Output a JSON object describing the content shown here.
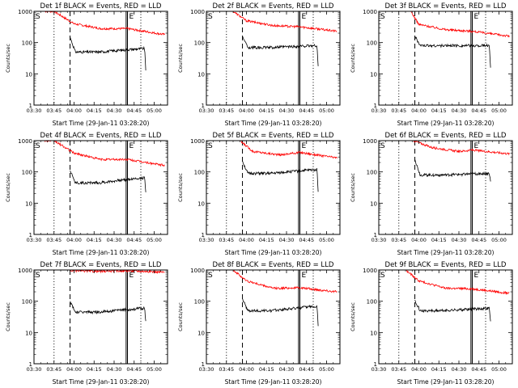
{
  "chart_data": {
    "type": "line",
    "y_scale": "log",
    "ylim": [
      1,
      1000
    ],
    "y_tick_labels": [
      "1",
      "10",
      "100",
      "1000"
    ],
    "x_tick_labels": [
      "03:30",
      "03:45",
      "04:00",
      "04:15",
      "04:30",
      "04:45",
      "05:00"
    ],
    "xlim": [
      "03:30",
      "05:10"
    ],
    "ylabel": "Counts/sec",
    "xlabel": "Start Time (29-Jan-11 03:28:20)",
    "colors": {
      "events": "#000000",
      "lld": "#ff0000",
      "axes": "#000000"
    },
    "series_names": [
      "BLACK = Events",
      "RED = LLD"
    ],
    "panels": [
      {
        "title": "Det 1f BLACK = Events, RED = LLD",
        "S_label": "S",
        "E_label": "E",
        "dotted": [
          "03:45",
          "04:50"
        ],
        "dashed": "03:57",
        "solid": [
          "04:39",
          "04:40"
        ],
        "events": {
          "start": "03:57",
          "end": "04:54",
          "peak": 150,
          "min": 50,
          "plateau_end": 65,
          "drop": 8
        },
        "lld": {
          "start": "03:38",
          "end": "05:08",
          "values_at": {
            "03:45": 1000,
            "04:00": 400,
            "04:20": 280,
            "04:40": 280,
            "05:08": 180
          }
        }
      },
      {
        "title": "Det 2f BLACK = Events, RED = LLD",
        "S_label": "S",
        "E_label": "E",
        "dotted": [
          "03:45",
          "04:50"
        ],
        "dashed": "03:57",
        "solid": [
          "04:39",
          "04:40"
        ],
        "events": {
          "start": "03:57",
          "end": "04:54",
          "peak": 160,
          "min": 70,
          "plateau_end": 80,
          "drop": 10
        },
        "lld": {
          "start": "03:50",
          "end": "05:08",
          "values_at": {
            "03:50": 1000,
            "04:00": 500,
            "04:20": 350,
            "04:40": 320,
            "05:08": 230
          }
        }
      },
      {
        "title": "Det 3f BLACK = Events, RED = LLD",
        "S_label": "S",
        "E_label": "E",
        "dotted": [
          "03:45",
          "04:50"
        ],
        "dashed": "03:57",
        "solid": [
          "04:39",
          "04:40"
        ],
        "events": {
          "start": "03:57",
          "end": "04:54",
          "peak": 160,
          "min": 80,
          "plateau_end": 80,
          "drop": 10
        },
        "lld": {
          "start": "03:54",
          "end": "05:08",
          "values_at": {
            "03:54": 1000,
            "04:00": 380,
            "04:20": 260,
            "04:40": 230,
            "05:08": 160
          }
        }
      },
      {
        "title": "Det 4f BLACK = Events, RED = LLD",
        "S_label": "S",
        "E_label": "E",
        "dotted": [
          "03:45",
          "04:50"
        ],
        "dashed": "03:57",
        "solid": [
          "04:39",
          "04:40"
        ],
        "events": {
          "start": "03:57",
          "end": "04:54",
          "peak": 110,
          "min": 45,
          "plateau_end": 65,
          "drop": 15
        },
        "lld": {
          "start": "03:38",
          "end": "05:08",
          "values_at": {
            "03:45": 1000,
            "04:00": 400,
            "04:20": 250,
            "04:40": 250,
            "05:08": 160
          }
        }
      },
      {
        "title": "Det 5f BLACK = Events, RED = LLD",
        "S_label": "S",
        "E_label": "E",
        "dotted": [
          "03:45",
          "04:50"
        ],
        "dashed": "03:57",
        "solid": [
          "04:39",
          "04:40"
        ],
        "events": {
          "start": "03:57",
          "end": "04:54",
          "peak": 220,
          "min": 90,
          "plateau_end": 120,
          "drop": 15
        },
        "lld": {
          "start": "03:55",
          "end": "05:08",
          "values_at": {
            "03:55": 1000,
            "04:05": 450,
            "04:25": 350,
            "04:40": 420,
            "05:08": 280
          }
        }
      },
      {
        "title": "Det 6f BLACK = Events, RED = LLD",
        "S_label": "S",
        "E_label": "E",
        "dotted": [
          "03:45",
          "04:50"
        ],
        "dashed": "03:57",
        "solid": [
          "04:39",
          "04:40"
        ],
        "events": {
          "start": "03:57",
          "end": "04:54",
          "peak": 250,
          "min": 80,
          "plateau_end": 90,
          "drop": 40
        },
        "lld": {
          "start": "03:56",
          "end": "05:08",
          "values_at": {
            "03:56": 1000,
            "04:10": 600,
            "04:30": 450,
            "04:40": 500,
            "05:08": 380
          }
        }
      },
      {
        "title": "Det 7f BLACK = Events, RED = LLD",
        "S_label": "S",
        "E_label": "E",
        "dotted": [
          "03:45",
          "04:50"
        ],
        "dashed": "03:57",
        "solid": [
          "04:39",
          "04:40"
        ],
        "events": {
          "start": "03:57",
          "end": "04:54",
          "peak": 100,
          "min": 45,
          "plateau_end": 60,
          "drop": 15
        },
        "lld": {
          "start": "03:57",
          "end": "05:08",
          "values_at": {
            "03:57": 950,
            "04:20": 900,
            "04:40": 950,
            "05:08": 850
          }
        }
      },
      {
        "title": "Det 8f BLACK = Events, RED = LLD",
        "S_label": "S",
        "E_label": "E",
        "dotted": [
          "03:45",
          "04:50"
        ],
        "dashed": "03:57",
        "solid": [
          "04:39",
          "04:40"
        ],
        "events": {
          "start": "03:57",
          "end": "04:54",
          "peak": 120,
          "min": 50,
          "plateau_end": 70,
          "drop": 10
        },
        "lld": {
          "start": "03:50",
          "end": "05:08",
          "values_at": {
            "03:50": 1000,
            "04:00": 450,
            "04:20": 260,
            "04:40": 270,
            "05:08": 200
          }
        }
      },
      {
        "title": "Det 9f BLACK = Events, RED = LLD",
        "S_label": "S",
        "E_label": "E",
        "dotted": [
          "03:45",
          "04:50"
        ],
        "dashed": "03:57",
        "solid": [
          "04:39",
          "04:40"
        ],
        "events": {
          "start": "03:57",
          "end": "04:54",
          "peak": 110,
          "min": 50,
          "plateau_end": 60,
          "drop": 15
        },
        "lld": {
          "start": "03:50",
          "end": "05:08",
          "values_at": {
            "03:50": 1000,
            "04:00": 450,
            "04:20": 260,
            "04:40": 250,
            "05:08": 180
          }
        }
      }
    ]
  }
}
